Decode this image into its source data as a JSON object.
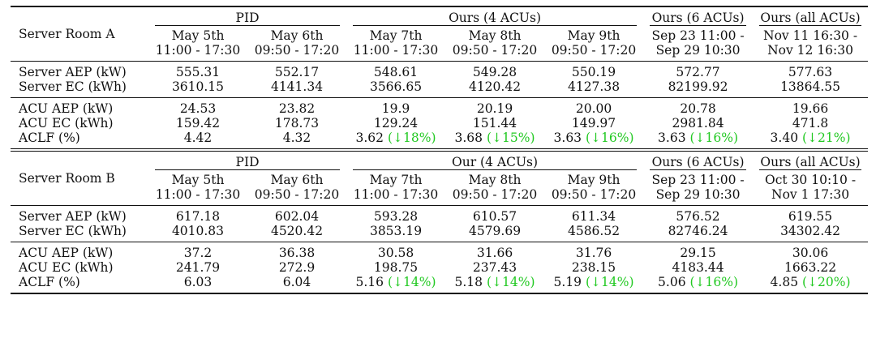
{
  "room_a": {
    "title": "Server Room A",
    "groups": [
      "PID",
      "Ours (4 ACUs)",
      "Ours (6 ACUs)",
      "Ours (all ACUs)"
    ],
    "periods": [
      [
        "May 5th",
        "11:00 - 17:30"
      ],
      [
        "May 6th",
        "09:50 - 17:20"
      ],
      [
        "May 7th",
        "11:00 - 17:30"
      ],
      [
        "May 8th",
        "09:50 - 17:20"
      ],
      [
        "May 9th",
        "09:50 - 17:20"
      ],
      [
        "Sep 23 11:00 -",
        "Sep 29 10:30"
      ],
      [
        "Nov 11 16:30 -",
        "Nov 12 16:30"
      ]
    ],
    "rows": [
      {
        "label": "Server AEP (kW)",
        "values": [
          "555.31",
          "552.17",
          "548.61",
          "549.28",
          "550.19",
          "572.77",
          "577.63"
        ]
      },
      {
        "label": "Server EC (kWh)",
        "values": [
          "3610.15",
          "4141.34",
          "3566.65",
          "4120.42",
          "4127.38",
          "82199.92",
          "13864.55"
        ]
      },
      {
        "label": "ACU AEP (kW)",
        "values": [
          "24.53",
          "23.82",
          "19.9",
          "20.19",
          "20.00",
          "20.78",
          "19.66"
        ]
      },
      {
        "label": "ACU EC (kWh)",
        "values": [
          "159.42",
          "178.73",
          "129.24",
          "151.44",
          "149.97",
          "2981.84",
          "471.8"
        ]
      },
      {
        "label": "ACLF (%)",
        "values": [
          "4.42",
          "4.32",
          "3.62",
          "3.68",
          "3.63",
          "3.63",
          "3.40"
        ],
        "reductions": [
          "",
          "",
          "(↓18%)",
          "(↓15%)",
          "(↓16%)",
          "(↓16%)",
          "(↓21%)"
        ]
      }
    ]
  },
  "room_b": {
    "title": "Server Room B",
    "groups": [
      "PID",
      "Our (4 ACUs)",
      "Ours (6 ACUs)",
      "Ours (all ACUs)"
    ],
    "periods": [
      [
        "May 5th",
        "11:00 - 17:30"
      ],
      [
        "May 6th",
        "09:50 - 17:20"
      ],
      [
        "May 7th",
        "11:00 - 17:30"
      ],
      [
        "May 8th",
        "09:50 - 17:20"
      ],
      [
        "May 9th",
        "09:50 - 17:20"
      ],
      [
        "Sep 23 11:00 -",
        "Sep 29 10:30"
      ],
      [
        "Oct 30 10:10 -",
        "Nov 1 17:30"
      ]
    ],
    "rows": [
      {
        "label": "Server AEP (kW)",
        "values": [
          "617.18",
          "602.04",
          "593.28",
          "610.57",
          "611.34",
          "576.52",
          "619.55"
        ]
      },
      {
        "label": "Server EC (kWh)",
        "values": [
          "4010.83",
          "4520.42",
          "3853.19",
          "4579.69",
          "4586.52",
          "82746.24",
          "34302.42"
        ]
      },
      {
        "label": "ACU AEP (kW)",
        "values": [
          "37.2",
          "36.38",
          "30.58",
          "31.66",
          "31.76",
          "29.15",
          "30.06"
        ]
      },
      {
        "label": "ACU EC (kWh)",
        "values": [
          "241.79",
          "272.9",
          "198.75",
          "237.43",
          "238.15",
          "4183.44",
          "1663.22"
        ]
      },
      {
        "label": "ACLF (%)",
        "values": [
          "6.03",
          "6.04",
          "5.16",
          "5.18",
          "5.19",
          "5.06",
          "4.85"
        ],
        "reductions": [
          "",
          "",
          "(↓14%)",
          "(↓14%)",
          "(↓14%)",
          "(↓16%)",
          "(↓20%)"
        ]
      }
    ]
  },
  "colors": {
    "reduction": "#22c922",
    "rule": "#111111"
  }
}
